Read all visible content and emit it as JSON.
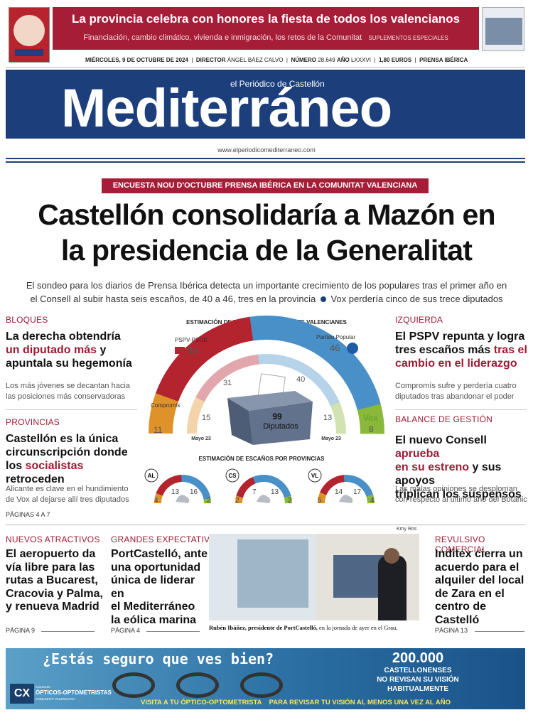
{
  "masthead": {
    "promo_headline": "La provincia celebra con honores la fiesta de todos los valencianos",
    "promo_sub": "Financiación, cambio climático, vivienda e inmigración, los retos de la Comunitat",
    "promo_tag": "SUPLEMENTOS ESPECIALES",
    "date": "MIÉRCOLES, 9 DE OCTUBRE DE 2024",
    "director_label": "DIRECTOR",
    "director": "ÁNGEL BÁEZ CALVO",
    "number_label": "NÚMERO",
    "number": "28.649",
    "year_label": "AÑO",
    "year": "LXXXVI",
    "price": "1,80 EUROS",
    "group": "PRENSA IBÉRICA",
    "tagline": "el Periódico de Castellón",
    "title": "Mediterráneo",
    "url": "www.elperiodicomediterraneo.com"
  },
  "lead": {
    "kicker": "ENCUESTA NOU D'OCTUBRE PRENSA IBÉRICA EN LA COMUNITAT VALENCIANA",
    "headline_1": "Castellón consolidaría a Mazón en",
    "headline_2": "la presidencia de la Generalitat",
    "deck_1": "El sondeo para los diarios de Prensa Ibérica detecta un importante crecimiento de los populares tras el primer año en",
    "deck_2": "el Consell al subir hasta seis escaños, de 40 a 46, tres en la provincia",
    "deck_3": "Vox perdería cinco de sus trece diputados"
  },
  "left_col": {
    "s1_label": "BLOQUES",
    "s1_h1": "La derecha obtendría",
    "s1_h2a": "un diputado más",
    "s1_h2b": " y",
    "s1_h3": "apuntala su hegemonía",
    "s1_sub_1": "Los más jóvenes se decantan hacia",
    "s1_sub_2": "las posiciones más conservadoras",
    "s2_label": "PROVINCIAS",
    "s2_h1": "Castellón es la única",
    "s2_h2": "circunscripción donde",
    "s2_h3a": "los ",
    "s2_h3b": "socialistas",
    "s2_h3c": " retroceden",
    "s2_sub_1": "Alicante es clave en el hundimiento",
    "s2_sub_2": "de Vox al dejarse allí tres diputados",
    "pages": "PÁGINAS 4 A 7"
  },
  "right_col": {
    "s1_label": "IZQUIERDA",
    "s1_h1": "El PSPV repunta y logra",
    "s1_h2a": "tres escaños más ",
    "s1_h2b": "tras el",
    "s1_h3": "cambio en el liderazgo",
    "s1_sub_1": "Compromís sufre y perdería cuatro",
    "s1_sub_2": "diputados tras abandonar el poder",
    "s2_label": "BALANCE DE GESTIÓN",
    "s2_h1a": "El nuevo Consell ",
    "s2_h1b": "aprueba",
    "s2_h2a": "en su estreno",
    "s2_h2b": " y sus apoyos",
    "s2_h3": "triplican los suspensos",
    "s2_sub_1": "Las malas opiniones se desploman",
    "s2_sub_2": "con respecto al último año del Botànic"
  },
  "chart_data": [
    {
      "type": "semicircle",
      "title": "ESTIMACIÓN DE ESCAÑOS EN LES CORTS VALENCIANES",
      "center_label_1": "99",
      "center_label_2": "Diputados",
      "previous_label": "Mayo 23",
      "series": [
        {
          "name": "Compromís",
          "value": 11,
          "previous": 15,
          "color": "#e0922a"
        },
        {
          "name": "PSPV-PSOE",
          "value": 34,
          "previous": 31,
          "color": "#b3242f"
        },
        {
          "name": "Partido Popular",
          "value": 46,
          "previous": 40,
          "color": "#4a90c8"
        },
        {
          "name": "Vox",
          "value": 8,
          "previous": 13,
          "color": "#8ab83a"
        }
      ]
    },
    {
      "type": "semicircle",
      "title": "ESTIMACIÓN DE ESCAÑOS POR PROVINCIAS",
      "provinces": [
        {
          "name": "AL",
          "values": [
            4,
            13,
            16,
            2
          ]
        },
        {
          "name": "CS",
          "values": [
            2,
            7,
            13,
            2
          ]
        },
        {
          "name": "VL",
          "values": [
            5,
            14,
            17,
            4
          ]
        }
      ]
    }
  ],
  "bottom": {
    "c1_label": "NUEVOS ATRACTIVOS",
    "c1_h": [
      "El aeropuerto da",
      "vía libre para las",
      "rutas a Bucarest,",
      "Cracovia y Palma,",
      "y renueva Madrid"
    ],
    "c1_page": "PÁGINA 9",
    "c2_label": "GRANDES EXPECTATIVAS",
    "c2_h": [
      "PortCastelló, ante",
      "una oportunidad",
      "única de liderar en",
      "el Mediterráneo",
      "la eólica marina"
    ],
    "c2_page": "PÁGINA 4",
    "photo_credit": "Kmy Ros",
    "photo_caption_bold": "Rubén Ibáñez, presidente de PortCastelló,",
    "photo_caption": " en la jornada de ayer en el Grau.",
    "c3_label": "REVULSIVO COMERCIAL",
    "c3_h": [
      "Inditex cierra un",
      "acuerdo para el",
      "alquiler del local",
      "de Zara en el",
      "centro de Castelló"
    ],
    "c3_page": "PÁGINA 13"
  },
  "ad": {
    "question": "¿Estás seguro que ves bien?",
    "big_number": "200.000",
    "line_1": "CASTELLONENSES",
    "line_2": "NO REVISAN SU VISIÓN",
    "line_3": "HABITUALMENTE",
    "footer": "VISITA A TU ÓPTICO-OPTOMETRISTA    PARA REVISAR TU VISIÓN AL MENOS UNA VEZ AL AÑO",
    "logo_small": "COLEGIO",
    "logo_main": "ÓPTICOS-OPTOMETRISTAS",
    "logo_sub": "COMUNITAT VALENCIANA",
    "logo_mark": "CX"
  }
}
